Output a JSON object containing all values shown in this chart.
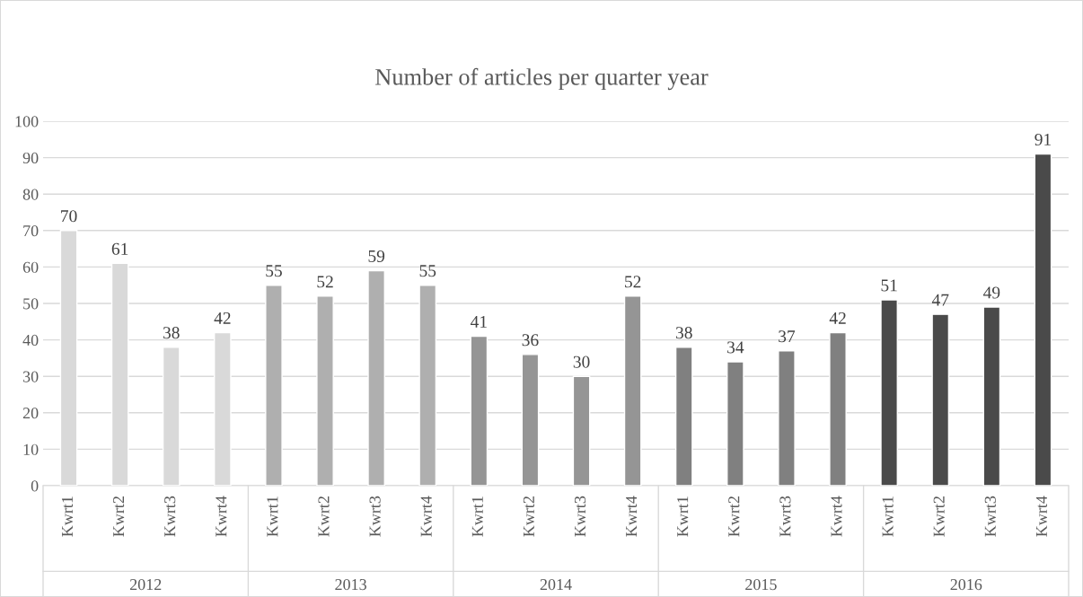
{
  "chart_data": {
    "type": "bar",
    "title": "Number of articles per quarter year",
    "categories": [
      "Kwrt1",
      "Kwrt2",
      "Kwrt3",
      "Kwrt4",
      "Kwrt1",
      "Kwrt2",
      "Kwrt3",
      "Kwrt4",
      "Kwrt1",
      "Kwrt2",
      "Kwrt3",
      "Kwrt4",
      "Kwrt1",
      "Kwrt2",
      "Kwrt3",
      "Kwrt4",
      "Kwrt1",
      "Kwrt2",
      "Kwrt3",
      "Kwrt4"
    ],
    "series": [
      {
        "color": "#d9d9d9",
        "values": [
          70,
          61,
          38,
          42,
          null,
          null,
          null,
          null,
          null,
          null,
          null,
          null,
          null,
          null,
          null,
          null,
          null,
          null,
          null,
          null
        ]
      },
      {
        "color": "#afafaf",
        "values": [
          null,
          null,
          null,
          null,
          55,
          52,
          59,
          55,
          null,
          null,
          null,
          null,
          null,
          null,
          null,
          null,
          null,
          null,
          null,
          null
        ]
      },
      {
        "color": "#959595",
        "values": [
          null,
          null,
          null,
          null,
          null,
          null,
          null,
          null,
          41,
          36,
          30,
          52,
          null,
          null,
          null,
          null,
          null,
          null,
          null,
          null
        ]
      },
      {
        "color": "#808080",
        "values": [
          null,
          null,
          null,
          null,
          null,
          null,
          null,
          null,
          null,
          null,
          null,
          null,
          38,
          34,
          37,
          42,
          null,
          null,
          null,
          null
        ]
      },
      {
        "color": "#4a4a4a",
        "values": [
          null,
          null,
          null,
          null,
          null,
          null,
          null,
          null,
          null,
          null,
          null,
          null,
          null,
          null,
          null,
          null,
          51,
          47,
          49,
          91
        ]
      }
    ],
    "ylim": [
      0,
      100
    ],
    "yticks": [
      0,
      10,
      20,
      30,
      40,
      50,
      60,
      70,
      80,
      90,
      100
    ],
    "annotations": [
      "2012",
      "2013",
      "2014",
      "2015",
      "2016"
    ],
    "grid": "y",
    "data_labels": true,
    "legend": false
  }
}
